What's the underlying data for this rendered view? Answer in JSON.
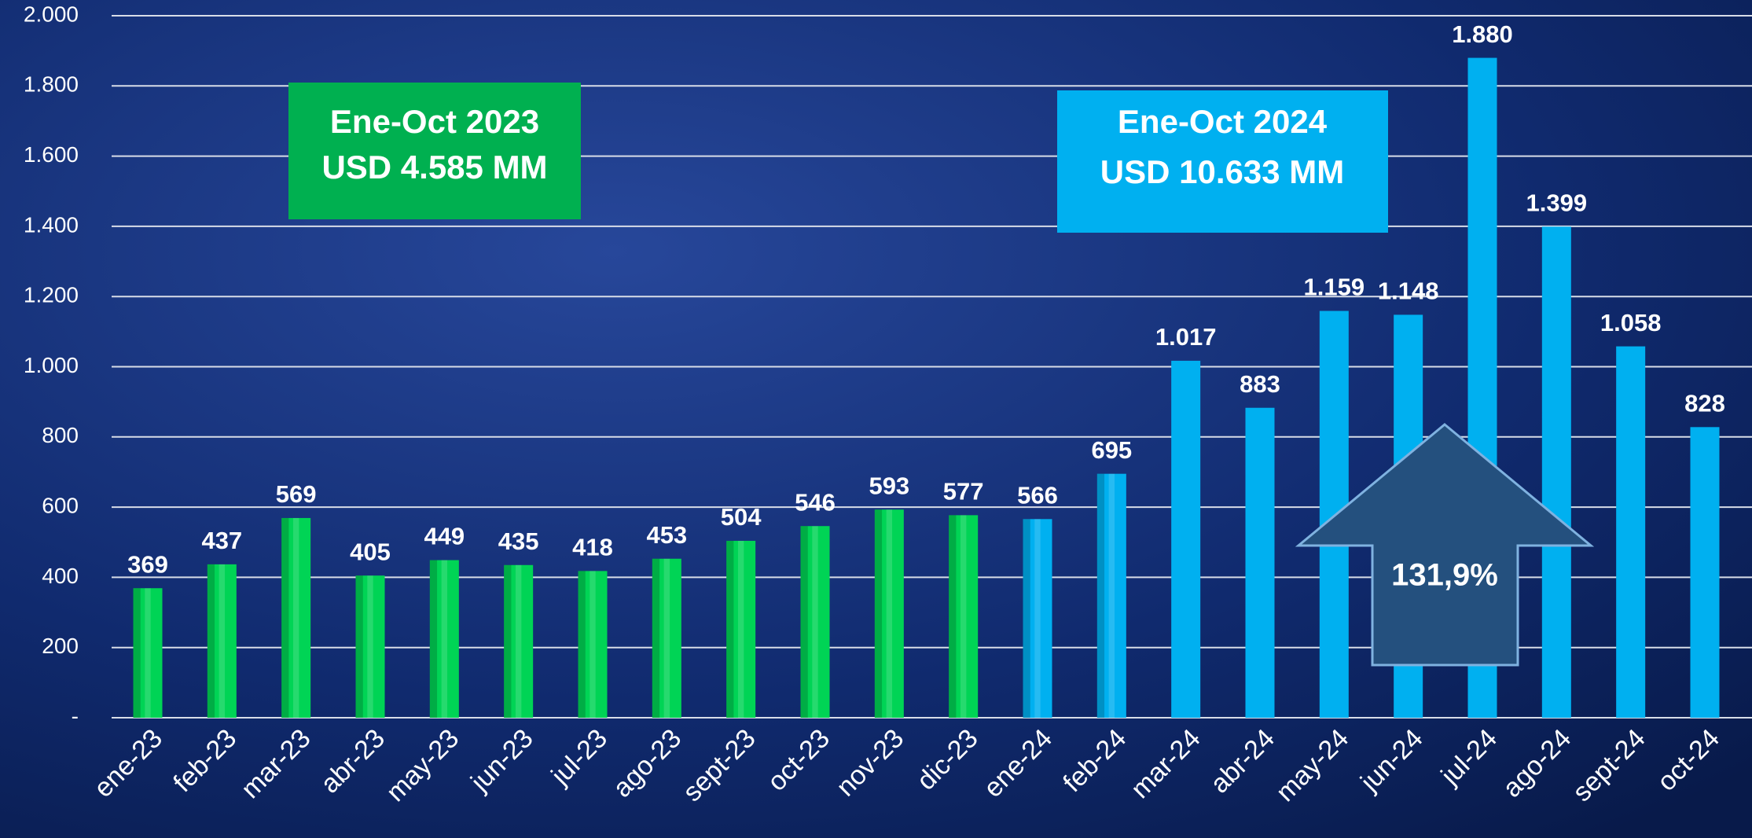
{
  "chart_data": {
    "type": "bar",
    "categories": [
      "ene-23",
      "feb-23",
      "mar-23",
      "abr-23",
      "may-23",
      "jun-23",
      "jul-23",
      "ago-23",
      "sept-23",
      "oct-23",
      "nov-23",
      "dic-23",
      "ene-24",
      "feb-24",
      "mar-24",
      "abr-24",
      "may-24",
      "jun-24",
      "jul-24",
      "ago-24",
      "sept-24",
      "oct-24"
    ],
    "values": [
      369,
      437,
      569,
      405,
      449,
      435,
      418,
      453,
      504,
      546,
      593,
      577,
      566,
      695,
      1017,
      883,
      1159,
      1148,
      1880,
      1399,
      1058,
      828
    ],
    "value_labels": [
      "369",
      "437",
      "569",
      "405",
      "449",
      "435",
      "418",
      "453",
      "504",
      "546",
      "593",
      "577",
      "566",
      "695",
      "1.017",
      "883",
      "1.159",
      "1.148",
      "1.880",
      "1.399",
      "1.058",
      "828"
    ],
    "colors": [
      "#00d455",
      "#00d455",
      "#00d455",
      "#00d455",
      "#00d455",
      "#00d455",
      "#00d455",
      "#00d455",
      "#00d455",
      "#00d455",
      "#00d455",
      "#00d455",
      "#00b0f0",
      "#00b0f0",
      "#00b0f0",
      "#00b0f0",
      "#00b0f0",
      "#00b0f0",
      "#00b0f0",
      "#00b0f0",
      "#00b0f0",
      "#00b0f0"
    ],
    "ylim": [
      0,
      2000
    ],
    "yticks": [
      {
        "value": 0,
        "label": "-"
      },
      200,
      400,
      600,
      800,
      {
        "value": 1000,
        "label": "1.000"
      },
      {
        "value": 1200,
        "label": "1.200"
      },
      {
        "value": 1400,
        "label": "1.400"
      },
      {
        "value": 1600,
        "label": "1.600"
      },
      {
        "value": 1800,
        "label": "1.800"
      },
      {
        "value": 2000,
        "label": "2.000"
      }
    ],
    "grid": true,
    "annotations": [
      {
        "lines": [
          "Ene-Oct 2023",
          "USD 4.585 MM"
        ],
        "color": "#00b050"
      },
      {
        "lines": [
          "Ene-Oct 2024",
          "USD 10.633 MM"
        ],
        "color": "#00b0f0"
      },
      {
        "text": "131,9%"
      }
    ]
  }
}
